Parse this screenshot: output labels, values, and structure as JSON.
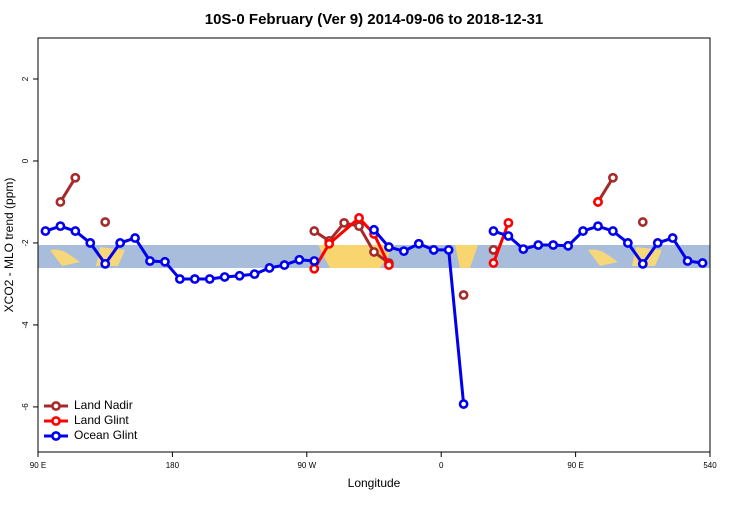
{
  "chart_data": {
    "type": "line",
    "title": "10S-0 February (Ver 9)   2014-09-06 to 2018-12-31",
    "xlabel": "Longitude",
    "ylabel": "XCO2 - MLO trend (ppm)",
    "xlim": [
      90,
      540
    ],
    "ylim": [
      -7.1,
      3.0
    ],
    "xticks": [
      {
        "value": 90,
        "label": "90 E"
      },
      180,
      {
        "value": 270,
        "label": "90 W"
      },
      {
        "value": 360,
        "label": "0"
      },
      {
        "value": 450,
        "label": "90 E"
      },
      540
    ],
    "yticks": [
      -6,
      -4,
      -2,
      0,
      2
    ],
    "legend": "bottomleft",
    "series": [
      {
        "name": "Land Nadir",
        "color": "#a52a2a",
        "x": [
          105,
          115,
          125,
          135,
          200,
          275,
          285,
          295,
          305,
          315,
          325,
          350,
          375,
          385,
          395,
          430,
          465,
          475,
          485,
          495
        ],
        "values": [
          -1.0,
          -0.41,
          null,
          -1.49,
          null,
          -1.71,
          -1.95,
          -1.51,
          -1.59,
          -2.22,
          -2.49,
          null,
          -3.27,
          null,
          -2.17,
          null,
          -1.0,
          -0.41,
          null,
          -1.49
        ]
      },
      {
        "name": "Land Glint",
        "color": "#ff0000",
        "x": [
          275,
          285,
          305,
          315,
          325,
          360,
          395,
          405,
          435,
          465
        ],
        "values": [
          -2.63,
          -2.02,
          -1.39,
          -1.78,
          -2.54,
          null,
          -2.49,
          -1.51,
          null,
          -1.0
        ]
      },
      {
        "name": "Ocean Glint",
        "color": "#0000ee",
        "x": [
          95,
          105,
          115,
          125,
          135,
          145,
          155,
          165,
          175,
          185,
          195,
          205,
          215,
          225,
          235,
          245,
          255,
          265,
          275,
          295,
          315,
          325,
          335,
          345,
          355,
          365,
          375,
          385,
          395,
          405,
          415,
          425,
          435,
          445,
          455,
          465,
          475,
          485,
          495,
          505,
          515,
          525,
          535
        ],
        "values": [
          -1.71,
          -1.59,
          -1.71,
          -2.0,
          -2.51,
          -2.0,
          -1.88,
          -2.44,
          -2.46,
          -2.88,
          -2.88,
          -2.88,
          -2.83,
          -2.8,
          -2.76,
          -2.61,
          -2.54,
          -2.41,
          -2.44,
          null,
          -1.68,
          -2.1,
          -2.2,
          -2.02,
          -2.17,
          -2.17,
          -5.93,
          null,
          -1.71,
          -1.83,
          -2.15,
          -2.05,
          -2.05,
          -2.07,
          -1.71,
          -1.59,
          -1.71,
          -2.0,
          -2.51,
          -2.0,
          -1.88,
          -2.44,
          -2.49
        ]
      }
    ]
  }
}
